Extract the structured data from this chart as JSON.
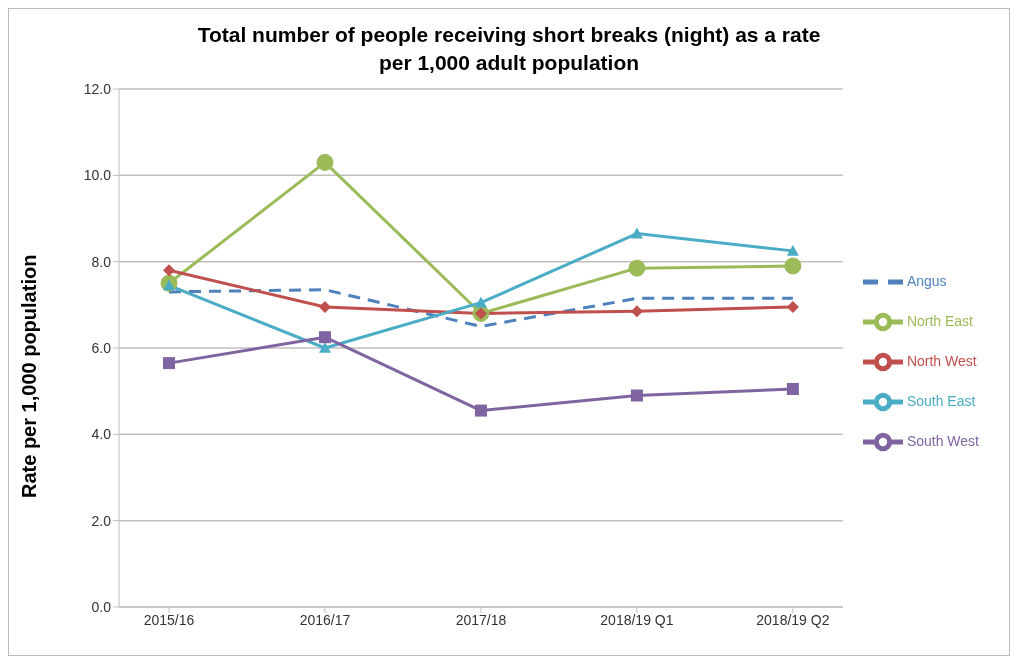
{
  "chart_data": {
    "type": "line",
    "title": "Total number of people receiving short breaks (night) as a rate\nper 1,000 adult population",
    "ylabel": "Rate per 1,000 population",
    "categories": [
      "2015/16",
      "2016/17",
      "2017/18",
      "2018/19 Q1",
      "2018/19 Q2"
    ],
    "series": [
      {
        "name": "Angus",
        "color": "#4f81bd",
        "marker": "none",
        "line_style": "dashed",
        "values": [
          7.3,
          7.35,
          6.5,
          7.15,
          7.15
        ]
      },
      {
        "name": "North East",
        "color": "#9bbb59",
        "marker": "circle",
        "line_style": "solid",
        "values": [
          7.5,
          10.3,
          6.8,
          7.85,
          7.9
        ]
      },
      {
        "name": "North West",
        "color": "#c0504d",
        "marker": "diamond",
        "line_style": "solid",
        "values": [
          7.8,
          6.95,
          6.8,
          6.85,
          6.95
        ]
      },
      {
        "name": "South East",
        "color": "#4bacc6",
        "marker": "triangle",
        "line_style": "solid",
        "values": [
          7.45,
          6.0,
          7.05,
          8.65,
          8.25
        ]
      },
      {
        "name": "South West",
        "color": "#8064a2",
        "marker": "square",
        "line_style": "solid",
        "values": [
          5.65,
          6.25,
          4.55,
          4.9,
          5.05
        ]
      }
    ],
    "ylim": [
      0,
      12
    ],
    "yticks": [
      {
        "value": 0,
        "label": "0.0"
      },
      {
        "value": 2,
        "label": "2.0"
      },
      {
        "value": 4,
        "label": "4.0"
      },
      {
        "value": 6,
        "label": "6.0"
      },
      {
        "value": 8,
        "label": "8.0"
      },
      {
        "value": 10,
        "label": "10.0"
      },
      {
        "value": 12,
        "label": "12.0"
      }
    ],
    "grid": "y",
    "legend": "right"
  }
}
